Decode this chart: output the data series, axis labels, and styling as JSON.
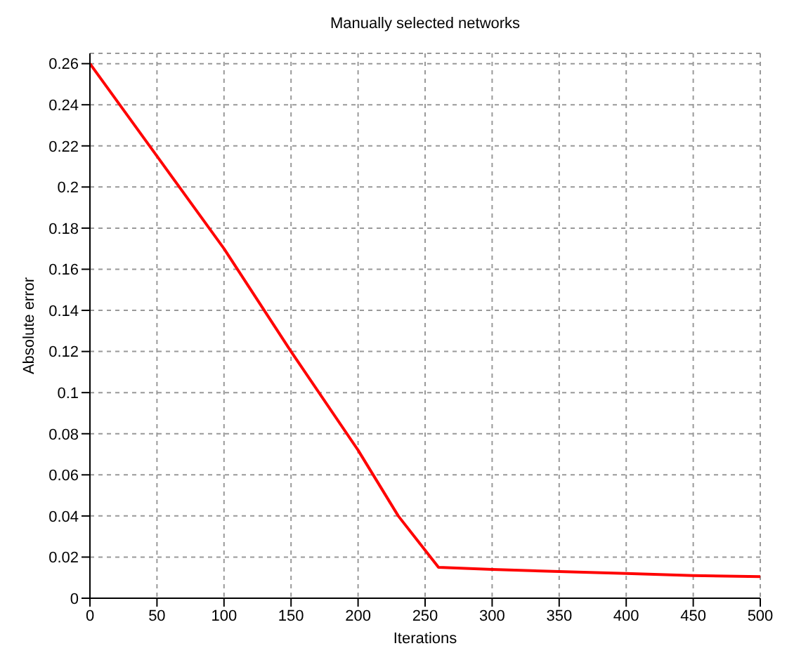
{
  "chart_data": {
    "type": "line",
    "title": "Manually selected networks",
    "xlabel": "Iterations",
    "ylabel": "Absolute error",
    "x": [
      0,
      50,
      100,
      150,
      200,
      230,
      260,
      300,
      350,
      400,
      450,
      500
    ],
    "series": [
      {
        "color": "#ff0000",
        "values": [
          0.26,
          0.215,
          0.17,
          0.12,
          0.072,
          0.04,
          0.015,
          0.014,
          0.013,
          0.012,
          0.011,
          0.0105
        ]
      }
    ],
    "xlim": [
      0,
      500
    ],
    "xticks": [
      0,
      50,
      100,
      150,
      200,
      250,
      300,
      350,
      400,
      450,
      500
    ],
    "ylim": [
      0,
      0.265
    ],
    "yticks": [
      0,
      0.02,
      0.04,
      0.06,
      0.08,
      0.1,
      0.12,
      0.14,
      0.16,
      0.18,
      0.2,
      0.22,
      0.24,
      0.26
    ],
    "grid": true,
    "marker": "none",
    "line_style": "solid",
    "legend": false
  }
}
